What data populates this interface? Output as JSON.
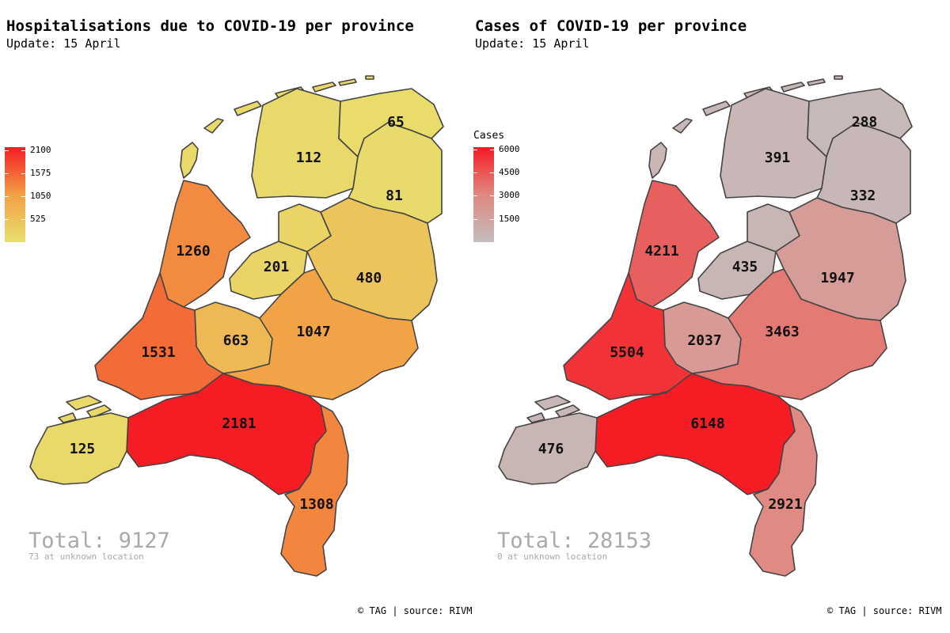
{
  "panels": [
    {
      "title": "Hospitalisations due to COVID-19 per province",
      "subtitle": "Update: 15 April",
      "legend": {
        "title": "",
        "min": 0,
        "max": 2181,
        "low_color": "#e8e06e",
        "mid_color": "#f2a044",
        "high_color": "#f51c24",
        "ticks": [
          "2100",
          "1575",
          "1050",
          "525"
        ],
        "tick_values": [
          2100,
          1575,
          1050,
          525
        ]
      },
      "provinces": [
        {
          "name": "Groningen",
          "value": 65,
          "label": "65"
        },
        {
          "name": "Friesland",
          "value": 112,
          "label": "112"
        },
        {
          "name": "Drenthe",
          "value": 81,
          "label": "81"
        },
        {
          "name": "Noord-Holland",
          "value": 1260,
          "label": "1260"
        },
        {
          "name": "Flevoland",
          "value": 201,
          "label": "201"
        },
        {
          "name": "Overijssel",
          "value": 480,
          "label": "480"
        },
        {
          "name": "Utrecht",
          "value": 663,
          "label": "663"
        },
        {
          "name": "Gelderland",
          "value": 1047,
          "label": "1047"
        },
        {
          "name": "Zuid-Holland",
          "value": 1531,
          "label": "1531"
        },
        {
          "name": "Noord-Brabant",
          "value": 2181,
          "label": "2181"
        },
        {
          "name": "Zeeland",
          "value": 125,
          "label": "125"
        },
        {
          "name": "Limburg",
          "value": 1308,
          "label": "1308"
        }
      ],
      "total": "Total: 9127",
      "unknown": "73 at unknown location",
      "caption": "© TAG | source: RIVM"
    },
    {
      "title": "Cases of COVID-19 per province",
      "subtitle": "Update: 15 April",
      "legend": {
        "title": "Cases",
        "min": 0,
        "max": 6148,
        "low_color": "#c4bebe",
        "mid_color": "#e08880",
        "high_color": "#f51c24",
        "ticks": [
          "6000",
          "4500",
          "3000",
          "1500"
        ],
        "tick_values": [
          6000,
          4500,
          3000,
          1500
        ]
      },
      "provinces": [
        {
          "name": "Groningen",
          "value": 288,
          "label": "288"
        },
        {
          "name": "Friesland",
          "value": 391,
          "label": "391"
        },
        {
          "name": "Drenthe",
          "value": 332,
          "label": "332"
        },
        {
          "name": "Noord-Holland",
          "value": 4211,
          "label": "4211"
        },
        {
          "name": "Flevoland",
          "value": 435,
          "label": "435"
        },
        {
          "name": "Overijssel",
          "value": 1947,
          "label": "1947"
        },
        {
          "name": "Utrecht",
          "value": 2037,
          "label": "2037"
        },
        {
          "name": "Gelderland",
          "value": 3463,
          "label": "3463"
        },
        {
          "name": "Zuid-Holland",
          "value": 5504,
          "label": "5504"
        },
        {
          "name": "Noord-Brabant",
          "value": 6148,
          "label": "6148"
        },
        {
          "name": "Zeeland",
          "value": 476,
          "label": "476"
        },
        {
          "name": "Limburg",
          "value": 2921,
          "label": "2921"
        }
      ],
      "total": "Total: 28153",
      "unknown": "0 at unknown location",
      "caption": "© TAG | source: RIVM"
    }
  ]
}
